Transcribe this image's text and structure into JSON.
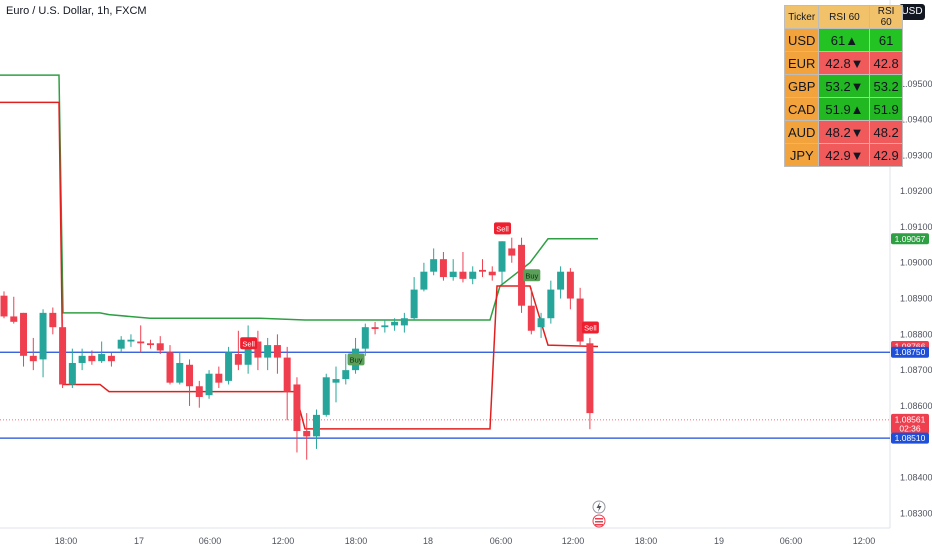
{
  "header": {
    "symbol_line": "Euro / U.S. Dollar, 1h, FXCM",
    "currency_button": "USD"
  },
  "rsi_table": {
    "headers": [
      "Ticker",
      "RSI 60",
      "RSI 60"
    ],
    "rows": [
      {
        "ticker": "USD",
        "value": "61",
        "arrow": "▲",
        "plain": "61",
        "color": "#22c322"
      },
      {
        "ticker": "EUR",
        "value": "42.8",
        "arrow": "▼",
        "plain": "42.8",
        "color": "#f05a5a"
      },
      {
        "ticker": "GBP",
        "value": "53.2",
        "arrow": "▼",
        "plain": "53.2",
        "color": "#22b822"
      },
      {
        "ticker": "CAD",
        "value": "51.9",
        "arrow": "▲",
        "plain": "51.9",
        "color": "#22b822"
      },
      {
        "ticker": "AUD",
        "value": "48.2",
        "arrow": "▼",
        "plain": "48.2",
        "color": "#f05a5a"
      },
      {
        "ticker": "JPY",
        "value": "42.9",
        "arrow": "▼",
        "plain": "42.9",
        "color": "#f05a5a"
      }
    ]
  },
  "chart_data": {
    "type": "candlestick",
    "ylim": [
      1.08259,
      1.09734
    ],
    "y_ticks": [
      "1.09500",
      "1.09400",
      "1.09300",
      "1.09200",
      "1.09100",
      "1.09000",
      "1.08900",
      "1.08800",
      "1.08700",
      "1.08600",
      "1.08400",
      "1.08300"
    ],
    "x_ticks": [
      "18:00",
      "17",
      "06:00",
      "12:00",
      "18:00",
      "18",
      "06:00",
      "12:00",
      "18:00",
      "19",
      "06:00",
      "12:00"
    ],
    "colors": {
      "up": "#26a69a",
      "down": "#ef3f4f",
      "upper_band": "#2ea043",
      "lower_band": "#e0201f",
      "hline": "#1e4fd8"
    },
    "candles": [
      {
        "o": 1.08908,
        "h": 1.0892,
        "c": 1.0885,
        "l": 1.08845
      },
      {
        "o": 1.0885,
        "h": 1.08905,
        "c": 1.08835,
        "l": 1.0883
      },
      {
        "o": 1.0886,
        "h": 1.0886,
        "c": 1.0874,
        "l": 1.0871
      },
      {
        "o": 1.0874,
        "h": 1.0879,
        "c": 1.08725,
        "l": 1.087
      },
      {
        "o": 1.0873,
        "h": 1.0887,
        "c": 1.0886,
        "l": 1.0868
      },
      {
        "o": 1.0886,
        "h": 1.08875,
        "c": 1.0882,
        "l": 1.088
      },
      {
        "o": 1.0882,
        "h": 1.0884,
        "c": 1.0866,
        "l": 1.0865
      },
      {
        "o": 1.0866,
        "h": 1.0876,
        "c": 1.0872,
        "l": 1.0865
      },
      {
        "o": 1.0872,
        "h": 1.0876,
        "c": 1.0874,
        "l": 1.087
      },
      {
        "o": 1.0874,
        "h": 1.08755,
        "c": 1.08725,
        "l": 1.08715
      },
      {
        "o": 1.08725,
        "h": 1.0878,
        "c": 1.08745,
        "l": 1.0872
      },
      {
        "o": 1.0874,
        "h": 1.0875,
        "c": 1.08725,
        "l": 1.0871
      },
      {
        "o": 1.0876,
        "h": 1.08795,
        "c": 1.08785,
        "l": 1.0875
      },
      {
        "o": 1.0878,
        "h": 1.088,
        "c": 1.08785,
        "l": 1.08765
      },
      {
        "o": 1.0878,
        "h": 1.08825,
        "c": 1.08775,
        "l": 1.0875
      },
      {
        "o": 1.08775,
        "h": 1.08785,
        "c": 1.0877,
        "l": 1.0876
      },
      {
        "o": 1.08775,
        "h": 1.08795,
        "c": 1.08755,
        "l": 1.08745
      },
      {
        "o": 1.0875,
        "h": 1.0877,
        "c": 1.08665,
        "l": 1.0866
      },
      {
        "o": 1.08665,
        "h": 1.0875,
        "c": 1.0872,
        "l": 1.0866
      },
      {
        "o": 1.08715,
        "h": 1.0873,
        "c": 1.08655,
        "l": 1.086
      },
      {
        "o": 1.08655,
        "h": 1.0867,
        "c": 1.08625,
        "l": 1.08595
      },
      {
        "o": 1.0863,
        "h": 1.087,
        "c": 1.0869,
        "l": 1.0862
      },
      {
        "o": 1.0869,
        "h": 1.0871,
        "c": 1.08665,
        "l": 1.0865
      },
      {
        "o": 1.0867,
        "h": 1.08765,
        "c": 1.0875,
        "l": 1.0866
      },
      {
        "o": 1.08745,
        "h": 1.0881,
        "c": 1.08715,
        "l": 1.087
      },
      {
        "o": 1.08715,
        "h": 1.08825,
        "c": 1.0878,
        "l": 1.0869
      },
      {
        "o": 1.0878,
        "h": 1.0881,
        "c": 1.08735,
        "l": 1.087
      },
      {
        "o": 1.08735,
        "h": 1.0879,
        "c": 1.0877,
        "l": 1.087
      },
      {
        "o": 1.0877,
        "h": 1.088,
        "c": 1.08735,
        "l": 1.0869
      },
      {
        "o": 1.08735,
        "h": 1.08765,
        "c": 1.0864,
        "l": 1.0856
      },
      {
        "o": 1.0866,
        "h": 1.0868,
        "c": 1.0853,
        "l": 1.0847
      },
      {
        "o": 1.0853,
        "h": 1.0858,
        "c": 1.08515,
        "l": 1.0845
      },
      {
        "o": 1.08515,
        "h": 1.0859,
        "c": 1.08575,
        "l": 1.0848
      },
      {
        "o": 1.08575,
        "h": 1.0869,
        "c": 1.0868,
        "l": 1.0857
      },
      {
        "o": 1.08665,
        "h": 1.0871,
        "c": 1.08675,
        "l": 1.0861
      },
      {
        "o": 1.08675,
        "h": 1.08745,
        "c": 1.087,
        "l": 1.0866
      },
      {
        "o": 1.087,
        "h": 1.0879,
        "c": 1.0876,
        "l": 1.0869
      },
      {
        "o": 1.0876,
        "h": 1.0883,
        "c": 1.0882,
        "l": 1.0874
      },
      {
        "o": 1.0882,
        "h": 1.08835,
        "c": 1.08815,
        "l": 1.088
      },
      {
        "o": 1.0882,
        "h": 1.0884,
        "c": 1.08825,
        "l": 1.08805
      },
      {
        "o": 1.08825,
        "h": 1.08845,
        "c": 1.08835,
        "l": 1.0881
      },
      {
        "o": 1.08825,
        "h": 1.0886,
        "c": 1.08845,
        "l": 1.08805
      },
      {
        "o": 1.08845,
        "h": 1.0896,
        "c": 1.08925,
        "l": 1.0884
      },
      {
        "o": 1.08925,
        "h": 1.09,
        "c": 1.08975,
        "l": 1.0892
      },
      {
        "o": 1.08975,
        "h": 1.0904,
        "c": 1.0901,
        "l": 1.08965
      },
      {
        "o": 1.0901,
        "h": 1.0903,
        "c": 1.0896,
        "l": 1.0895
      },
      {
        "o": 1.0896,
        "h": 1.0901,
        "c": 1.08975,
        "l": 1.0895
      },
      {
        "o": 1.08975,
        "h": 1.0903,
        "c": 1.08955,
        "l": 1.08945
      },
      {
        "o": 1.08955,
        "h": 1.0899,
        "c": 1.08975,
        "l": 1.0894
      },
      {
        "o": 1.0898,
        "h": 1.0901,
        "c": 1.08975,
        "l": 1.0896
      },
      {
        "o": 1.08975,
        "h": 1.0899,
        "c": 1.08965,
        "l": 1.0895
      },
      {
        "o": 1.08975,
        "h": 1.0906,
        "c": 1.0906,
        "l": 1.0894
      },
      {
        "o": 1.0904,
        "h": 1.0907,
        "c": 1.0902,
        "l": 1.09
      },
      {
        "o": 1.0905,
        "h": 1.0907,
        "c": 1.0888,
        "l": 1.0886
      },
      {
        "o": 1.0888,
        "h": 1.0893,
        "c": 1.0881,
        "l": 1.088
      },
      {
        "o": 1.0882,
        "h": 1.0886,
        "c": 1.08845,
        "l": 1.0879
      },
      {
        "o": 1.08845,
        "h": 1.0895,
        "c": 1.08925,
        "l": 1.0883
      },
      {
        "o": 1.08925,
        "h": 1.0899,
        "c": 1.08975,
        "l": 1.089
      },
      {
        "o": 1.08975,
        "h": 1.08985,
        "c": 1.089,
        "l": 1.0887
      },
      {
        "o": 1.089,
        "h": 1.0893,
        "c": 1.0878,
        "l": 1.0877
      },
      {
        "o": 1.08775,
        "h": 1.0879,
        "c": 1.0858,
        "l": 1.08535
      }
    ],
    "upper_band": [
      [
        0,
        1.09524
      ],
      [
        53,
        1.09524
      ],
      [
        59,
        1.09524
      ],
      [
        63,
        1.0886
      ],
      [
        100,
        1.0886
      ],
      [
        109,
        1.08855
      ],
      [
        150,
        1.08845
      ],
      [
        200,
        1.08845
      ],
      [
        260,
        1.08845
      ],
      [
        305,
        1.0884
      ],
      [
        380,
        1.0884
      ],
      [
        460,
        1.0884
      ],
      [
        490,
        1.0884
      ],
      [
        500,
        1.08935
      ],
      [
        530,
        1.09
      ],
      [
        548,
        1.09067
      ],
      [
        598,
        1.09067
      ]
    ],
    "lower_band": [
      [
        0,
        1.09448
      ],
      [
        53,
        1.09448
      ],
      [
        59,
        1.09448
      ],
      [
        63,
        1.0866
      ],
      [
        100,
        1.0866
      ],
      [
        109,
        1.0864
      ],
      [
        150,
        1.0864
      ],
      [
        200,
        1.0864
      ],
      [
        260,
        1.0864
      ],
      [
        295,
        1.0864
      ],
      [
        305,
        1.08536
      ],
      [
        380,
        1.08536
      ],
      [
        460,
        1.08536
      ],
      [
        490,
        1.08536
      ],
      [
        497,
        1.08935
      ],
      [
        530,
        1.08935
      ],
      [
        548,
        1.0877
      ],
      [
        598,
        1.08766
      ]
    ],
    "hlines": [
      1.0875,
      1.0851
    ],
    "last_price_line": 1.08561,
    "price_labels": [
      {
        "text": "1.09067",
        "value": 1.09067,
        "color": "#2ea043",
        "sub": ""
      },
      {
        "text": "1.08766",
        "value": 1.08766,
        "color": "#ef3f4f",
        "sub": ""
      },
      {
        "text": "1.08750",
        "value": 1.0875,
        "color": "#1e4fd8",
        "sub": ""
      },
      {
        "text": "1.08561",
        "value": 1.08561,
        "color": "#ef3f4f",
        "sub": "02:36"
      },
      {
        "text": "1.08510",
        "value": 1.0851,
        "color": "#1e4fd8",
        "sub": ""
      }
    ],
    "signals": [
      {
        "text": "Sell",
        "type": "sell",
        "candle": 25,
        "value": 1.08775
      },
      {
        "text": "Buy",
        "type": "buy",
        "candle": 36,
        "value": 1.0873
      },
      {
        "text": "Sell",
        "type": "sell",
        "candle": 51,
        "value": 1.09096
      },
      {
        "text": "Buy",
        "type": "buy",
        "candle": 54,
        "value": 1.08965
      },
      {
        "text": "Sell",
        "type": "sell",
        "candle": 60,
        "value": 1.08819
      }
    ]
  }
}
